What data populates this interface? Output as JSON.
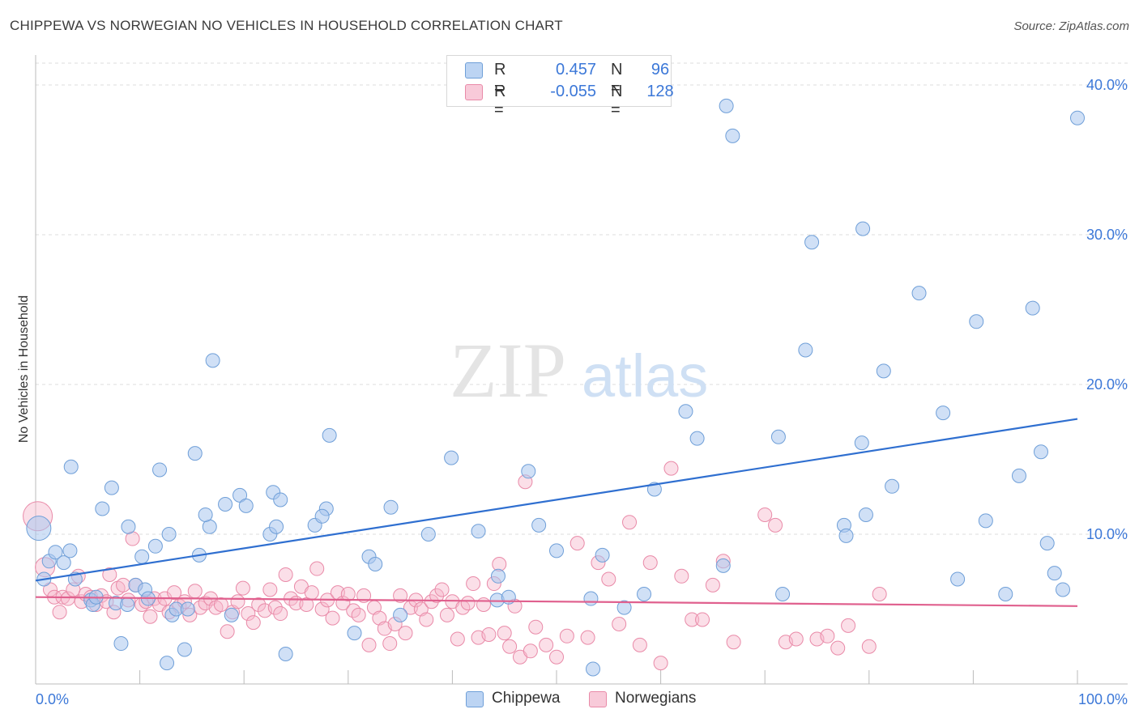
{
  "header": {
    "title": "CHIPPEWA VS NORWEGIAN NO VEHICLES IN HOUSEHOLD CORRELATION CHART",
    "source": "Source: ZipAtlas.com"
  },
  "watermark": {
    "zip": "ZIP",
    "atlas": "atlas"
  },
  "legend": {
    "rows": [
      {
        "r_label": "R =",
        "r_value": "0.457",
        "n_label": "N =",
        "n_value": "96"
      },
      {
        "r_label": "R =",
        "r_value": "-0.055",
        "n_label": "N =",
        "n_value": "128"
      }
    ]
  },
  "bottom_legend": {
    "chippewa": "Chippewa",
    "norwegians": "Norwegians"
  },
  "colors": {
    "chippewa_fill": "#a9c6ef",
    "chippewa_stroke": "#6f9fd8",
    "chippewa_line": "#2f6fd0",
    "norwegian_fill": "#f6b9cc",
    "norwegian_stroke": "#e98aa8",
    "norwegian_line": "#e0608e",
    "axis_label": "#3c78d8"
  },
  "chart_data": {
    "type": "scatter",
    "title": "CHIPPEWA VS NORWEGIAN NO VEHICLES IN HOUSEHOLD CORRELATION CHART",
    "xlabel": "",
    "ylabel": "No Vehicles in Household",
    "xlim": [
      0,
      100
    ],
    "ylim": [
      0,
      42
    ],
    "x_tick_labels": [
      "0.0%",
      "100.0%"
    ],
    "y_ticks": [
      10,
      20,
      30,
      40
    ],
    "y_tick_labels": [
      "10.0%",
      "20.0%",
      "30.0%",
      "40.0%"
    ],
    "grid": "horizontal dashed",
    "legend_position": "top-center",
    "series": [
      {
        "name": "Chippewa",
        "r": 0.457,
        "n": 96,
        "trend": {
          "x": [
            0,
            100
          ],
          "y": [
            6.9,
            17.7
          ]
        },
        "points": [
          [
            0.3,
            10.4
          ],
          [
            0.8,
            7.0
          ],
          [
            1.3,
            8.2
          ],
          [
            1.9,
            8.8
          ],
          [
            2.7,
            8.1
          ],
          [
            3.3,
            8.9
          ],
          [
            3.4,
            14.5
          ],
          [
            3.8,
            7.0
          ],
          [
            5.3,
            5.6
          ],
          [
            5.5,
            5.3
          ],
          [
            5.8,
            5.8
          ],
          [
            6.4,
            11.7
          ],
          [
            7.3,
            13.1
          ],
          [
            7.7,
            5.4
          ],
          [
            8.2,
            2.7
          ],
          [
            8.8,
            5.3
          ],
          [
            9.6,
            6.6
          ],
          [
            10.2,
            8.5
          ],
          [
            10.5,
            6.3
          ],
          [
            10.8,
            5.7
          ],
          [
            11.5,
            9.2
          ],
          [
            11.9,
            14.3
          ],
          [
            12.6,
            1.4
          ],
          [
            12.8,
            10.0
          ],
          [
            13.1,
            4.6
          ],
          [
            13.5,
            5.0
          ],
          [
            14.3,
            2.3
          ],
          [
            14.6,
            5.0
          ],
          [
            15.3,
            15.4
          ],
          [
            15.7,
            8.6
          ],
          [
            16.7,
            10.5
          ],
          [
            17.0,
            21.6
          ],
          [
            18.2,
            12.0
          ],
          [
            18.8,
            4.6
          ],
          [
            19.6,
            12.6
          ],
          [
            20.2,
            11.9
          ],
          [
            22.5,
            10.0
          ],
          [
            22.8,
            12.8
          ],
          [
            23.1,
            10.5
          ],
          [
            23.5,
            12.3
          ],
          [
            24.0,
            2.0
          ],
          [
            26.8,
            10.6
          ],
          [
            27.9,
            11.7
          ],
          [
            28.2,
            16.6
          ],
          [
            30.6,
            3.4
          ],
          [
            32.0,
            8.5
          ],
          [
            32.6,
            8.0
          ],
          [
            34.1,
            11.8
          ],
          [
            37.7,
            10.0
          ],
          [
            39.9,
            15.1
          ],
          [
            42.5,
            10.2
          ],
          [
            44.3,
            5.6
          ],
          [
            44.4,
            7.2
          ],
          [
            45.4,
            5.8
          ],
          [
            47.3,
            14.2
          ],
          [
            48.3,
            10.6
          ],
          [
            50.0,
            8.9
          ],
          [
            53.3,
            5.7
          ],
          [
            53.5,
            1.0
          ],
          [
            54.4,
            8.6
          ],
          [
            56.5,
            5.1
          ],
          [
            58.4,
            6.0
          ],
          [
            59.4,
            13.0
          ],
          [
            62.4,
            18.2
          ],
          [
            63.5,
            16.4
          ],
          [
            66.0,
            7.9
          ],
          [
            66.3,
            38.6
          ],
          [
            66.9,
            36.6
          ],
          [
            71.3,
            16.5
          ],
          [
            71.7,
            6.0
          ],
          [
            73.9,
            22.3
          ],
          [
            74.5,
            29.5
          ],
          [
            77.6,
            10.6
          ],
          [
            77.8,
            9.9
          ],
          [
            79.3,
            16.1
          ],
          [
            79.4,
            30.4
          ],
          [
            79.7,
            11.3
          ],
          [
            81.4,
            20.9
          ],
          [
            82.2,
            13.2
          ],
          [
            84.8,
            26.1
          ],
          [
            87.1,
            18.1
          ],
          [
            88.5,
            7.0
          ],
          [
            90.3,
            24.2
          ],
          [
            91.2,
            10.9
          ],
          [
            93.1,
            6.0
          ],
          [
            94.4,
            13.9
          ],
          [
            95.7,
            25.1
          ],
          [
            96.5,
            15.5
          ],
          [
            97.1,
            9.4
          ],
          [
            97.8,
            7.4
          ],
          [
            98.6,
            6.3
          ],
          [
            100.0,
            37.8
          ],
          [
            35.0,
            4.6
          ],
          [
            27.5,
            11.2
          ],
          [
            16.3,
            11.3
          ],
          [
            8.9,
            10.5
          ]
        ]
      },
      {
        "name": "Norwegians",
        "r": -0.055,
        "n": 128,
        "trend": {
          "x": [
            0,
            100
          ],
          "y": [
            5.8,
            5.2
          ]
        },
        "points": [
          [
            0.2,
            11.2
          ],
          [
            0.9,
            7.8
          ],
          [
            1.4,
            6.3
          ],
          [
            1.8,
            5.8
          ],
          [
            2.3,
            4.8
          ],
          [
            2.6,
            5.8
          ],
          [
            3.1,
            5.7
          ],
          [
            3.6,
            6.3
          ],
          [
            4.1,
            7.2
          ],
          [
            4.4,
            5.5
          ],
          [
            4.8,
            6.0
          ],
          [
            5.3,
            5.8
          ],
          [
            5.8,
            5.3
          ],
          [
            6.3,
            5.9
          ],
          [
            6.8,
            5.5
          ],
          [
            7.1,
            7.3
          ],
          [
            7.5,
            4.8
          ],
          [
            7.9,
            6.4
          ],
          [
            8.4,
            6.6
          ],
          [
            8.9,
            5.6
          ],
          [
            9.3,
            9.7
          ],
          [
            9.6,
            6.6
          ],
          [
            10.2,
            5.3
          ],
          [
            10.6,
            5.5
          ],
          [
            11.0,
            4.5
          ],
          [
            11.4,
            5.7
          ],
          [
            11.9,
            5.3
          ],
          [
            12.4,
            5.7
          ],
          [
            12.8,
            4.8
          ],
          [
            13.3,
            6.1
          ],
          [
            13.8,
            5.2
          ],
          [
            14.3,
            5.5
          ],
          [
            14.8,
            4.6
          ],
          [
            15.3,
            6.2
          ],
          [
            15.8,
            5.1
          ],
          [
            16.3,
            5.4
          ],
          [
            16.8,
            5.7
          ],
          [
            17.3,
            5.1
          ],
          [
            17.8,
            5.3
          ],
          [
            18.4,
            3.5
          ],
          [
            18.9,
            4.8
          ],
          [
            19.4,
            5.5
          ],
          [
            19.9,
            6.4
          ],
          [
            20.4,
            4.7
          ],
          [
            20.9,
            4.1
          ],
          [
            21.4,
            5.3
          ],
          [
            22.0,
            4.9
          ],
          [
            22.5,
            6.3
          ],
          [
            23.0,
            5.1
          ],
          [
            23.5,
            4.7
          ],
          [
            24.0,
            7.3
          ],
          [
            24.5,
            5.7
          ],
          [
            25.0,
            5.4
          ],
          [
            25.5,
            6.5
          ],
          [
            26.0,
            5.3
          ],
          [
            26.5,
            6.1
          ],
          [
            27.0,
            7.7
          ],
          [
            27.5,
            5.0
          ],
          [
            28.0,
            5.6
          ],
          [
            28.5,
            4.4
          ],
          [
            29.0,
            6.1
          ],
          [
            29.5,
            5.4
          ],
          [
            30.0,
            6.0
          ],
          [
            30.5,
            4.9
          ],
          [
            31.0,
            4.6
          ],
          [
            31.5,
            5.9
          ],
          [
            32.0,
            2.6
          ],
          [
            32.5,
            5.1
          ],
          [
            33.0,
            4.4
          ],
          [
            33.5,
            3.7
          ],
          [
            34.0,
            2.7
          ],
          [
            34.5,
            4.0
          ],
          [
            35.0,
            5.9
          ],
          [
            35.5,
            3.4
          ],
          [
            36.0,
            5.1
          ],
          [
            36.5,
            5.6
          ],
          [
            37.0,
            5.0
          ],
          [
            37.5,
            4.3
          ],
          [
            38.0,
            5.5
          ],
          [
            38.5,
            5.9
          ],
          [
            39.0,
            6.3
          ],
          [
            39.5,
            4.6
          ],
          [
            40.0,
            5.5
          ],
          [
            40.5,
            3.0
          ],
          [
            41.0,
            5.1
          ],
          [
            41.5,
            5.4
          ],
          [
            42.0,
            6.7
          ],
          [
            42.5,
            3.1
          ],
          [
            43.0,
            5.3
          ],
          [
            43.5,
            3.3
          ],
          [
            44.0,
            6.7
          ],
          [
            44.5,
            8.0
          ],
          [
            45.0,
            3.4
          ],
          [
            45.5,
            2.5
          ],
          [
            46.0,
            5.2
          ],
          [
            46.5,
            1.8
          ],
          [
            47.0,
            13.5
          ],
          [
            47.5,
            2.2
          ],
          [
            48.0,
            3.8
          ],
          [
            49.0,
            2.6
          ],
          [
            50.0,
            1.8
          ],
          [
            51.0,
            3.2
          ],
          [
            52.0,
            9.4
          ],
          [
            53.0,
            3.1
          ],
          [
            54.0,
            8.1
          ],
          [
            55.0,
            7.0
          ],
          [
            56.0,
            4.0
          ],
          [
            57.0,
            10.8
          ],
          [
            58.0,
            2.6
          ],
          [
            59.0,
            8.1
          ],
          [
            60.0,
            1.4
          ],
          [
            61.0,
            14.4
          ],
          [
            62.0,
            7.2
          ],
          [
            63.0,
            4.3
          ],
          [
            64.0,
            4.3
          ],
          [
            65.0,
            6.6
          ],
          [
            66.0,
            8.2
          ],
          [
            67.0,
            2.8
          ],
          [
            70.0,
            11.3
          ],
          [
            71.0,
            10.6
          ],
          [
            72.0,
            2.8
          ],
          [
            73.0,
            3.0
          ],
          [
            75.0,
            3.0
          ],
          [
            76.0,
            3.2
          ],
          [
            77.0,
            2.4
          ],
          [
            78.0,
            3.9
          ],
          [
            80.0,
            2.5
          ],
          [
            81.0,
            6.0
          ]
        ]
      }
    ]
  }
}
